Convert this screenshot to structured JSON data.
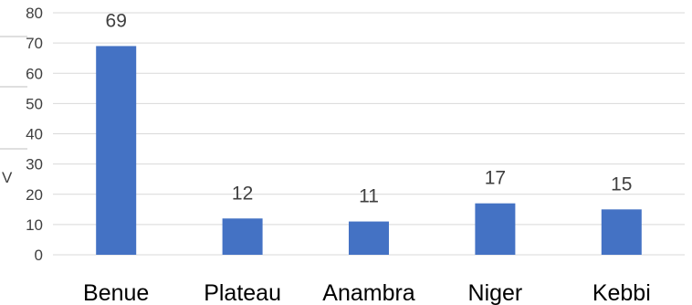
{
  "chart_data": {
    "type": "bar",
    "categories": [
      "Benue",
      "Plateau",
      "Anambra",
      "Niger",
      "Kebbi"
    ],
    "values": [
      69,
      12,
      11,
      17,
      15
    ],
    "data_labels": [
      "69",
      "12",
      "11",
      "17",
      "15"
    ],
    "ylim": [
      0,
      80
    ],
    "yticks": [
      0,
      10,
      20,
      30,
      40,
      50,
      60,
      70,
      80
    ],
    "ytick_labels": [
      "0",
      "10",
      "20",
      "30",
      "40",
      "50",
      "60",
      "70",
      "80"
    ],
    "grid": true,
    "legend": "none",
    "bar_color": "#4472c4",
    "grid_color": "#d9d9d9"
  },
  "edge_fragment": "V"
}
